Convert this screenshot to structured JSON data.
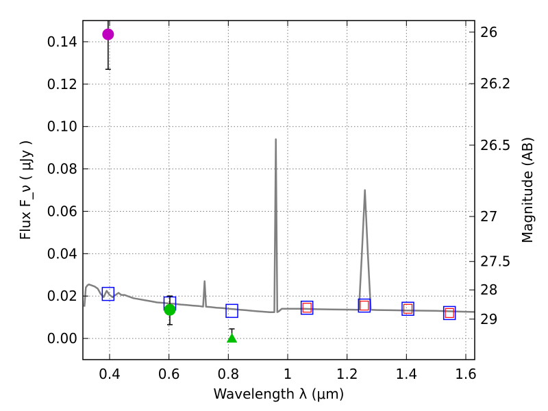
{
  "chart_data": {
    "type": "scatter",
    "xlabel": "Wavelength  λ (μm)",
    "ylabel": "Flux  F_ν  ( μJy )",
    "ylabel_right": "Magnitude (AB)",
    "xlim": [
      0.31,
      1.63
    ],
    "ylim": [
      -0.01,
      0.15
    ],
    "grid": true,
    "x_ticks": [
      {
        "value": 0.4,
        "label": "0.4"
      },
      {
        "value": 0.6,
        "label": "0.6"
      },
      {
        "value": 0.8,
        "label": "0.8"
      },
      {
        "value": 1.0,
        "label": "1"
      },
      {
        "value": 1.2,
        "label": "1.2"
      },
      {
        "value": 1.4,
        "label": "1.4"
      },
      {
        "value": 1.6,
        "label": "1.6"
      }
    ],
    "y_ticks": [
      {
        "value": 0.0,
        "label": "0.00"
      },
      {
        "value": 0.02,
        "label": "0.02"
      },
      {
        "value": 0.04,
        "label": "0.04"
      },
      {
        "value": 0.06,
        "label": "0.06"
      },
      {
        "value": 0.08,
        "label": "0.08"
      },
      {
        "value": 0.1,
        "label": "0.10"
      },
      {
        "value": 0.12,
        "label": "0.12"
      },
      {
        "value": 0.14,
        "label": "0.14"
      }
    ],
    "magnitude_ticks": [
      {
        "mag": 26.0,
        "label": "26"
      },
      {
        "mag": 26.2,
        "label": "26.2"
      },
      {
        "mag": 26.5,
        "label": "26.5"
      },
      {
        "mag": 27.0,
        "label": "27"
      },
      {
        "mag": 27.5,
        "label": "27.5"
      },
      {
        "mag": 28.0,
        "label": "28"
      },
      {
        "mag": 29.0,
        "label": "29"
      }
    ],
    "colors": {
      "spectrum": "#808080",
      "model_photometry": "#0000ff",
      "red_inner": "#ff0000",
      "detection_violet": "#bf00bf",
      "detection_green": "#00bf00",
      "errorbar": "#000000",
      "grid": "#777777"
    },
    "spectrum": {
      "name": "SED model",
      "x": [
        0.315,
        0.32,
        0.325,
        0.33,
        0.34,
        0.35,
        0.36,
        0.37,
        0.38,
        0.39,
        0.4,
        0.41,
        0.42,
        0.43,
        0.44,
        0.45,
        0.46,
        0.47,
        0.48,
        0.5,
        0.52,
        0.54,
        0.56,
        0.58,
        0.6,
        0.62,
        0.64,
        0.66,
        0.68,
        0.7,
        0.715,
        0.72,
        0.725,
        0.74,
        0.76,
        0.78,
        0.8,
        0.82,
        0.84,
        0.86,
        0.88,
        0.9,
        0.92,
        0.94,
        0.955,
        0.96,
        0.965,
        0.97,
        0.98,
        1.0,
        1.05,
        1.1,
        1.15,
        1.2,
        1.24,
        1.25,
        1.26,
        1.27,
        1.28,
        1.3,
        1.35,
        1.4,
        1.45,
        1.5,
        1.55,
        1.6,
        1.63
      ],
      "y": [
        0.015,
        0.024,
        0.025,
        0.0255,
        0.025,
        0.0245,
        0.0235,
        0.021,
        0.0195,
        0.0225,
        0.0205,
        0.0195,
        0.0205,
        0.0215,
        0.0205,
        0.0205,
        0.02,
        0.0195,
        0.019,
        0.0185,
        0.018,
        0.0175,
        0.017,
        0.0168,
        0.0165,
        0.0163,
        0.016,
        0.0158,
        0.0155,
        0.0153,
        0.015,
        0.027,
        0.015,
        0.0148,
        0.0145,
        0.0143,
        0.014,
        0.0138,
        0.0135,
        0.0133,
        0.013,
        0.0128,
        0.0126,
        0.0124,
        0.0124,
        0.094,
        0.0124,
        0.0128,
        0.014,
        0.014,
        0.014,
        0.0138,
        0.0137,
        0.0136,
        0.0135,
        0.04,
        0.07,
        0.04,
        0.0135,
        0.0134,
        0.0133,
        0.0132,
        0.0131,
        0.013,
        0.0128,
        0.0126,
        0.0125
      ]
    },
    "model_photometry": {
      "name": "model band fluxes",
      "x": [
        0.395,
        0.603,
        0.812,
        1.065,
        1.258,
        1.405,
        1.545
      ],
      "y": [
        0.021,
        0.0165,
        0.013,
        0.0145,
        0.0155,
        0.014,
        0.012
      ]
    },
    "red_squares": {
      "name": "red inner markers",
      "x": [
        1.065,
        1.258,
        1.405,
        1.545
      ],
      "y": [
        0.0145,
        0.0155,
        0.014,
        0.012
      ]
    },
    "observations": [
      {
        "name": "violet detection",
        "x": 0.395,
        "y": 0.1435,
        "err_low": 0.127,
        "err_high": 0.151,
        "marker": "circle",
        "color_key": "detection_violet"
      },
      {
        "name": "green detection",
        "x": 0.603,
        "y": 0.0135,
        "err_low": 0.0065,
        "err_high": 0.02,
        "marker": "circle",
        "color_key": "detection_green"
      },
      {
        "name": "green upper triangle",
        "x": 0.812,
        "y": 0.0,
        "err_low": -0.0005,
        "err_high": 0.0045,
        "marker": "triangle",
        "color_key": "detection_green"
      }
    ]
  }
}
